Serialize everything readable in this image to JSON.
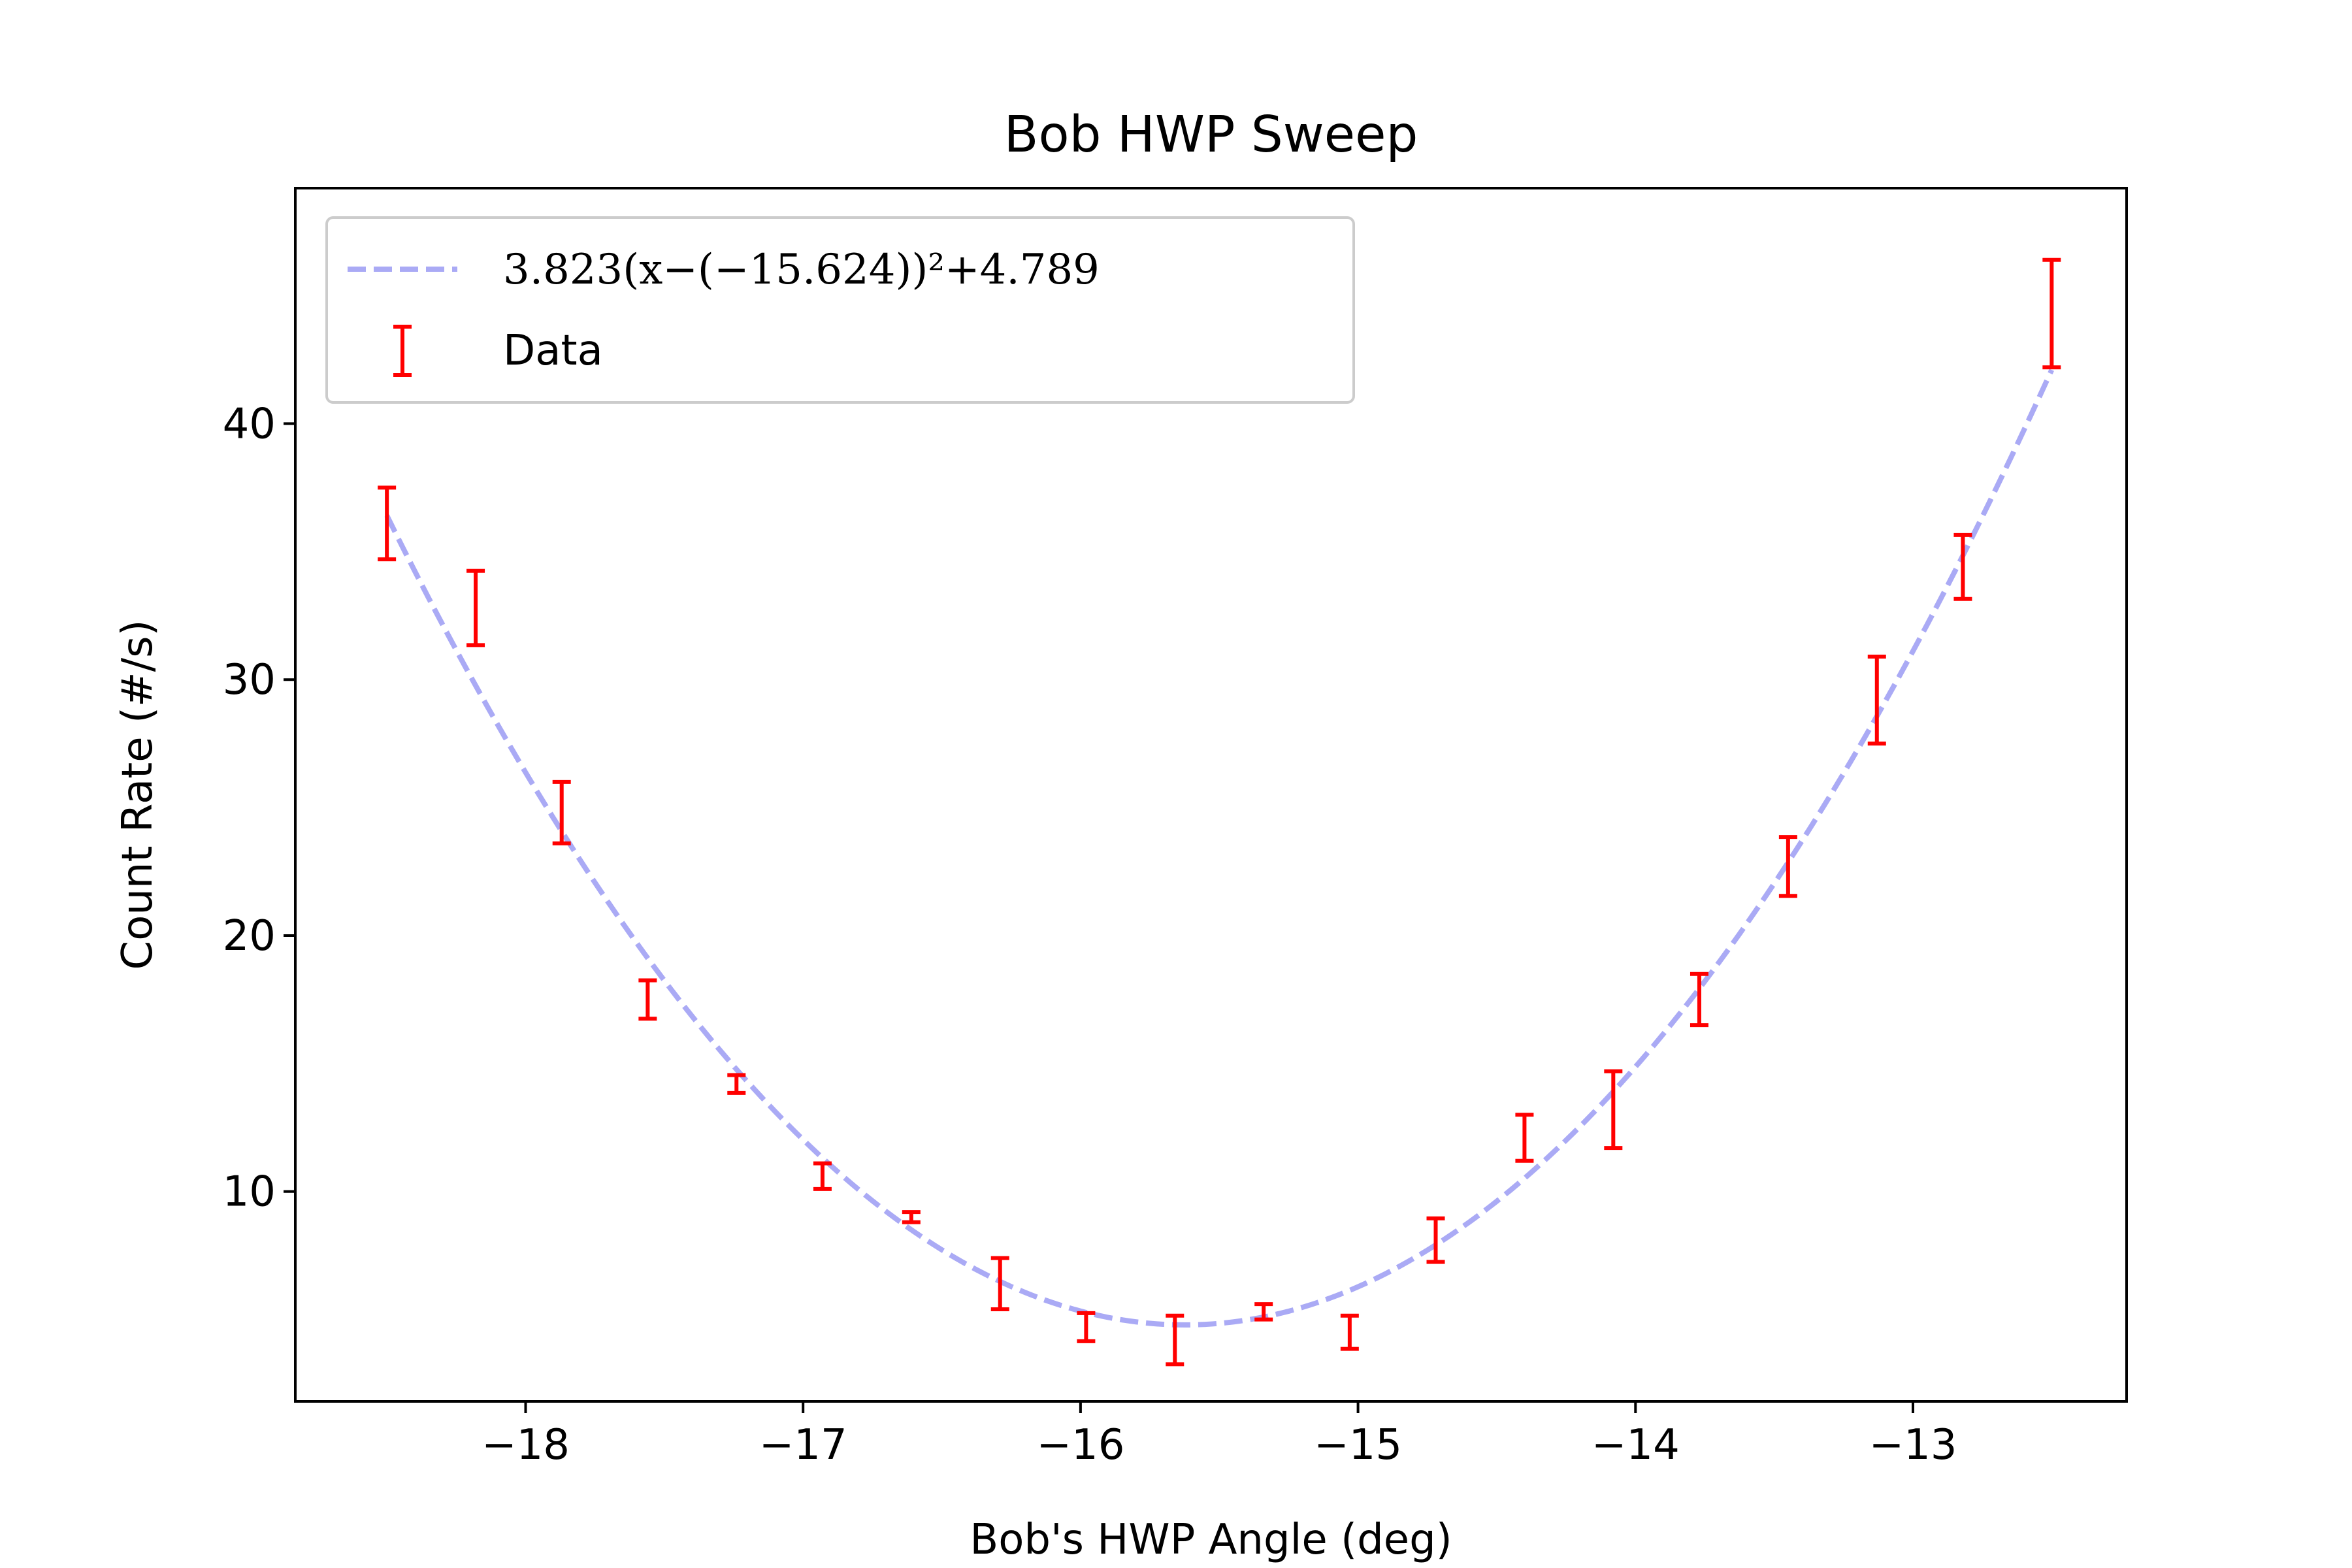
{
  "chart_data": {
    "type": "scatter",
    "title": "Bob HWP Sweep",
    "xlabel": "Bob's HWP Angle (deg)",
    "ylabel": "Count Rate (#/s)",
    "xlim": [
      -18.83,
      -12.23
    ],
    "ylim": [
      1.8,
      49.2
    ],
    "xticks": [
      -18,
      -17,
      -16,
      -15,
      -14,
      -13
    ],
    "xtick_labels": [
      "−18",
      "−17",
      "−16",
      "−15",
      "−14",
      "−13"
    ],
    "yticks": [
      10,
      20,
      30,
      40
    ],
    "ytick_labels": [
      "10",
      "20",
      "30",
      "40"
    ],
    "grid": false,
    "legend_position": "top-left",
    "series": [
      {
        "name": "3.823(x−(−15.624))²+4.789",
        "kind": "fit-curve",
        "style": "dashed",
        "color": "#aaaaf5",
        "formula": {
          "a": 3.823,
          "h": -15.624,
          "k": 4.789
        },
        "x_range": [
          -18.5,
          -12.5
        ]
      },
      {
        "name": "Data",
        "kind": "errorbar",
        "color": "#ff0000",
        "points": [
          {
            "x": -18.5,
            "y": 36.1,
            "err": 1.4
          },
          {
            "x": -18.18,
            "y": 32.8,
            "err": 1.45
          },
          {
            "x": -17.87,
            "y": 24.8,
            "err": 1.2
          },
          {
            "x": -17.56,
            "y": 17.5,
            "err": 0.75
          },
          {
            "x": -17.24,
            "y": 14.2,
            "err": 0.35
          },
          {
            "x": -16.93,
            "y": 10.6,
            "err": 0.5
          },
          {
            "x": -16.61,
            "y": 9.0,
            "err": 0.2
          },
          {
            "x": -16.29,
            "y": 6.4,
            "err": 1.0
          },
          {
            "x": -15.98,
            "y": 4.7,
            "err": 0.55
          },
          {
            "x": -15.66,
            "y": 4.2,
            "err": 0.95
          },
          {
            "x": -15.34,
            "y": 5.3,
            "err": 0.3
          },
          {
            "x": -15.03,
            "y": 4.5,
            "err": 0.65
          },
          {
            "x": -14.72,
            "y": 8.1,
            "err": 0.85
          },
          {
            "x": -14.4,
            "y": 12.1,
            "err": 0.9
          },
          {
            "x": -14.08,
            "y": 13.2,
            "err": 1.5
          },
          {
            "x": -13.77,
            "y": 17.5,
            "err": 1.0
          },
          {
            "x": -13.45,
            "y": 22.7,
            "err": 1.15
          },
          {
            "x": -13.13,
            "y": 29.2,
            "err": 1.7
          },
          {
            "x": -12.82,
            "y": 34.4,
            "err": 1.25
          },
          {
            "x": -12.5,
            "y": 44.3,
            "err": 2.1
          }
        ]
      }
    ]
  }
}
